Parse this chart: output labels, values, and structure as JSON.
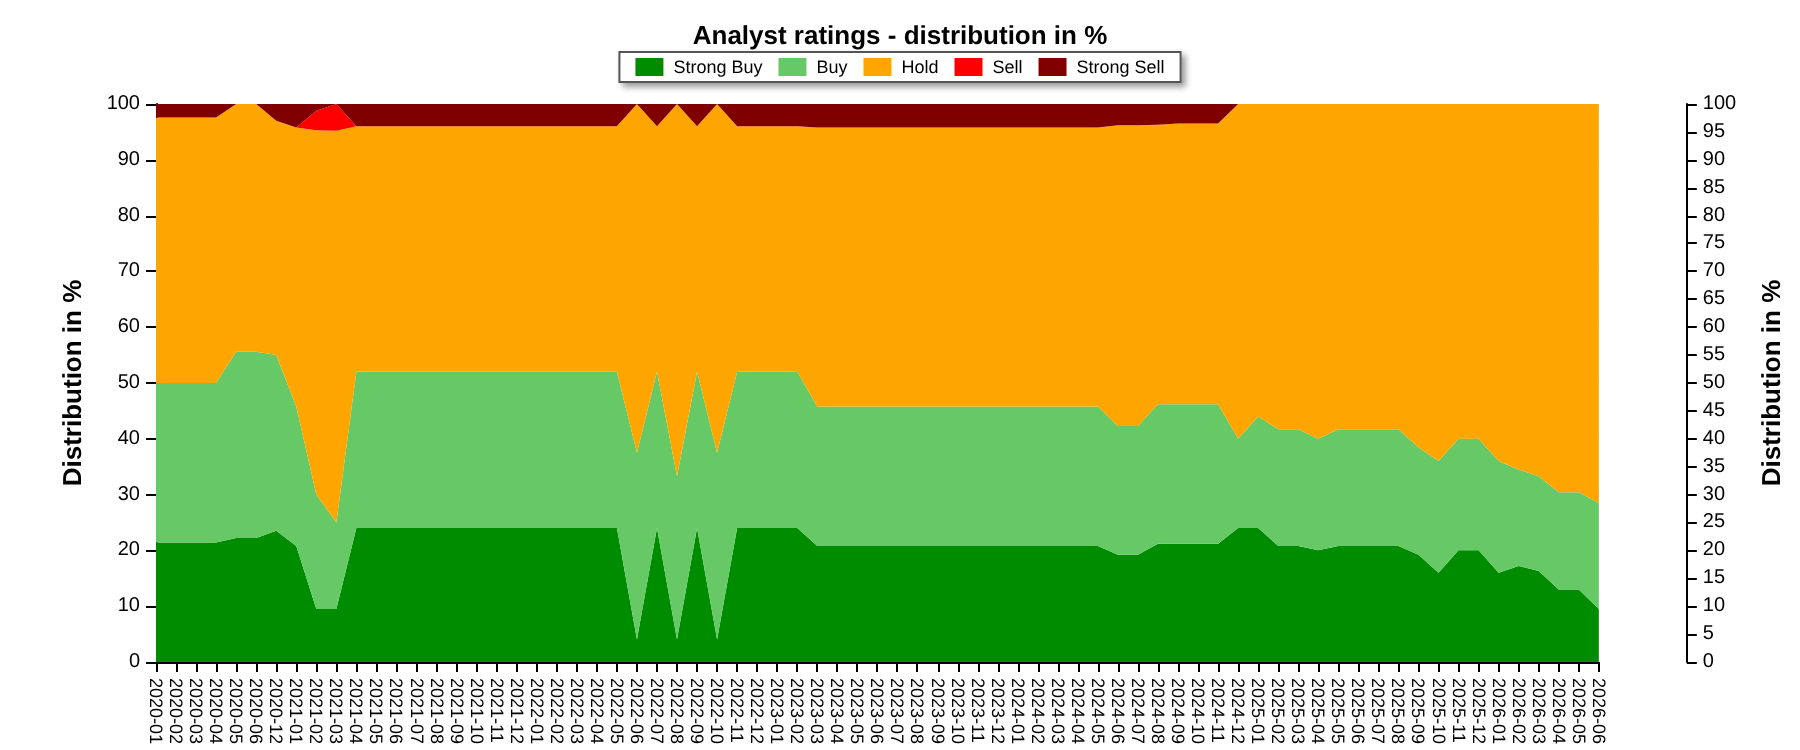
{
  "chart_data": {
    "type": "area",
    "stacked": true,
    "title": "Analyst ratings - distribution in %",
    "ylabel": "Distribution in %",
    "y2label": "Distribution in %",
    "categories": [
      "2020-01",
      "2020-02",
      "2020-03",
      "2020-04",
      "2020-05",
      "2020-06",
      "2020-12",
      "2021-01",
      "2021-02",
      "2021-03",
      "2021-04",
      "2021-05",
      "2021-06",
      "2021-07",
      "2021-08",
      "2021-09",
      "2021-10",
      "2021-11",
      "2021-12",
      "2022-01",
      "2022-02",
      "2022-03",
      "2022-04",
      "2022-05",
      "2022-06",
      "2022-07",
      "2022-08",
      "2022-09",
      "2022-10",
      "2022-11",
      "2022-12",
      "2023-01",
      "2023-02",
      "2023-03",
      "2023-04",
      "2023-05",
      "2023-06",
      "2023-07",
      "2023-08",
      "2023-09",
      "2023-10",
      "2023-11",
      "2023-12",
      "2024-01",
      "2024-02",
      "2024-03",
      "2024-04",
      "2024-05",
      "2024-06",
      "2024-07",
      "2024-08",
      "2024-09",
      "2024-10",
      "2024-11",
      "2024-12",
      "2025-01",
      "2025-02",
      "2025-03",
      "2025-04",
      "2025-05",
      "2025-06",
      "2025-07",
      "2025-08",
      "2025-09",
      "2025-10",
      "2025-11",
      "2025-12",
      "2026-01",
      "2026-02",
      "2026-03",
      "2026-04",
      "2026-05",
      "2026-06"
    ],
    "series": [
      {
        "name": "Strong Buy",
        "color": "#008c00",
        "values": [
          21.4,
          21.4,
          21.4,
          21.4,
          22.2,
          22.2,
          23.5,
          20.8,
          9.5,
          9.5,
          24,
          24,
          24,
          24,
          24,
          24,
          24,
          24,
          24,
          24,
          24,
          24,
          24,
          24,
          4,
          24,
          4,
          24,
          4,
          24,
          24,
          24,
          24,
          20.8,
          20.8,
          20.8,
          20.8,
          20.8,
          20.8,
          20.8,
          20.8,
          20.8,
          20.8,
          20.8,
          20.8,
          20.8,
          20.8,
          20.8,
          19.2,
          19.2,
          21.2,
          21.2,
          21.2,
          21.2,
          24,
          24,
          20.8,
          20.8,
          20,
          20.8,
          20.8,
          20.8,
          20.8,
          19.2,
          16,
          20,
          20,
          16,
          17.2,
          16.3,
          13,
          13,
          9.5
        ]
      },
      {
        "name": "Buy",
        "color": "#66c966",
        "values": [
          28.6,
          28.6,
          28.6,
          28.6,
          33.4,
          33.4,
          31.5,
          25,
          20.5,
          15.5,
          28,
          28,
          28,
          28,
          28,
          28,
          28,
          28,
          28,
          28,
          28,
          28,
          28,
          28,
          33.5,
          28,
          29.3,
          28,
          33.5,
          28,
          28,
          28,
          28,
          25,
          25,
          25,
          25,
          25,
          25,
          25,
          25,
          25,
          25,
          25,
          25,
          25,
          25,
          25,
          23.1,
          23.1,
          25,
          25,
          25,
          25,
          16,
          20,
          20.9,
          20.9,
          20,
          20.9,
          20.9,
          20.9,
          20.9,
          19.3,
          20,
          20,
          20,
          20,
          17.3,
          17,
          17.4,
          17.4,
          19
        ]
      },
      {
        "name": "Hold",
        "color": "#ffa500",
        "values": [
          47.6,
          47.6,
          47.6,
          47.6,
          44.4,
          44.4,
          42,
          50,
          65.3,
          70.2,
          44,
          44,
          44,
          44,
          44,
          44,
          44,
          44,
          44,
          44,
          44,
          44,
          44,
          44,
          62.5,
          44,
          66.7,
          44,
          62.5,
          44,
          44,
          44,
          44,
          50,
          50,
          50,
          50,
          50,
          50,
          50,
          50,
          50,
          50,
          50,
          50,
          50,
          50,
          50,
          53.9,
          53.9,
          50.1,
          50.3,
          50.3,
          50.3,
          60,
          56,
          58.3,
          58.3,
          60,
          58.3,
          58.3,
          58.3,
          58.3,
          61.5,
          64,
          60,
          60,
          64,
          65.5,
          66.7,
          69.6,
          69.6,
          71.5
        ]
      },
      {
        "name": "Sell",
        "color": "#ff0000",
        "values": [
          0,
          0,
          0,
          0,
          0,
          0,
          0,
          0,
          3.5,
          4.8,
          0,
          0,
          0,
          0,
          0,
          0,
          0,
          0,
          0,
          0,
          0,
          0,
          0,
          0,
          0,
          0,
          0,
          0,
          0,
          0,
          0,
          0,
          0,
          0,
          0,
          0,
          0,
          0,
          0,
          0,
          0,
          0,
          0,
          0,
          0,
          0,
          0,
          0,
          0,
          0,
          0,
          0,
          0,
          0,
          0,
          0,
          0,
          0,
          0,
          0,
          0,
          0,
          0,
          0,
          0,
          0,
          0,
          0,
          0,
          0,
          0,
          0,
          0
        ]
      },
      {
        "name": "Strong Sell",
        "color": "#800000",
        "values": [
          2.4,
          2.4,
          2.4,
          2.4,
          0,
          0,
          3,
          4.2,
          1.2,
          0,
          4,
          4,
          4,
          4,
          4,
          4,
          4,
          4,
          4,
          4,
          4,
          4,
          4,
          4,
          0,
          4,
          0,
          4,
          0,
          4,
          4,
          4,
          4,
          4.2,
          4.2,
          4.2,
          4.2,
          4.2,
          4.2,
          4.2,
          4.2,
          4.2,
          4.2,
          4.2,
          4.2,
          4.2,
          4.2,
          4.2,
          3.8,
          3.8,
          3.7,
          3.5,
          3.5,
          3.5,
          0,
          0,
          0,
          0,
          0,
          0,
          0,
          0,
          0,
          0,
          0,
          0,
          0,
          0,
          0,
          0,
          0,
          0,
          0
        ]
      }
    ],
    "ylim": [
      0,
      100
    ],
    "yticks": [
      0,
      10,
      20,
      30,
      40,
      50,
      60,
      70,
      80,
      90,
      100
    ],
    "y2lim": [
      0,
      100
    ],
    "y2ticks": [
      0,
      5,
      10,
      15,
      20,
      25,
      30,
      35,
      40,
      45,
      50,
      55,
      60,
      65,
      70,
      75,
      80,
      85,
      90,
      95,
      100
    ],
    "grid": "y",
    "legend": "top"
  }
}
